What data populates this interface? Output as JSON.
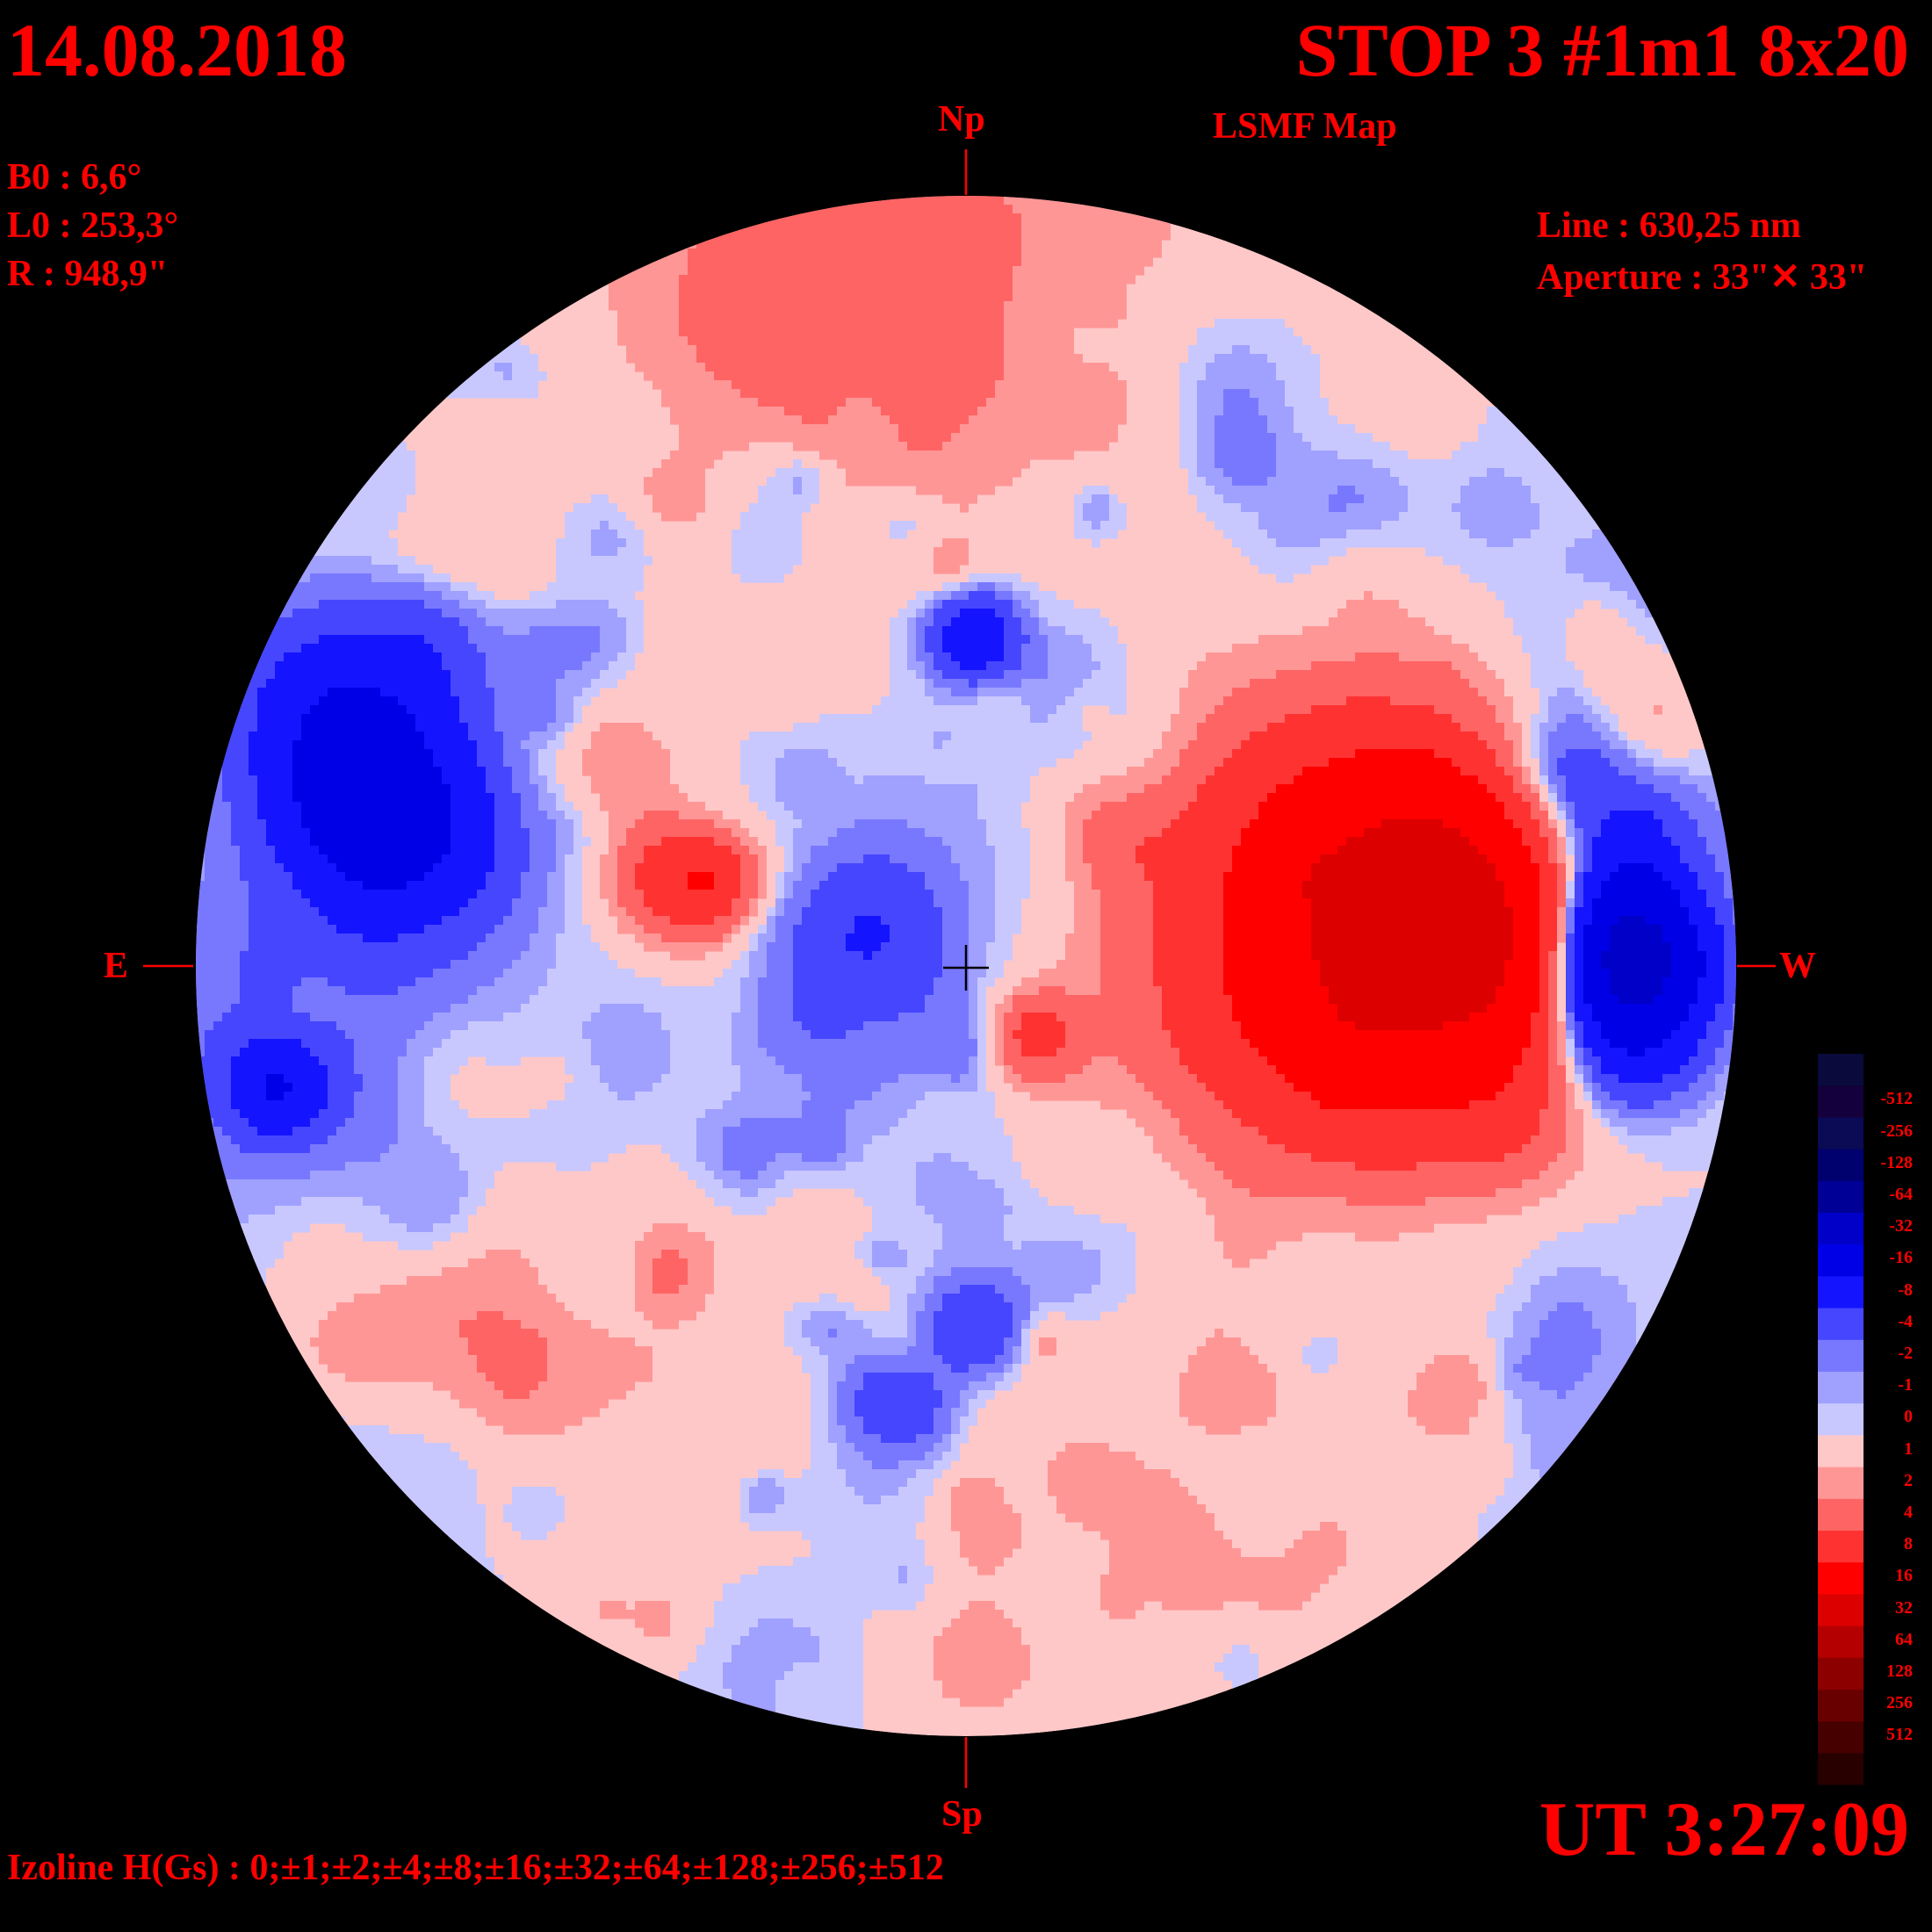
{
  "header": {
    "date": "14.08.2018",
    "stop_title": "STOP 3 #1m1 8x20",
    "map_type": "LSMF  Map"
  },
  "params": {
    "b0": "B0 : 6,6°",
    "l0": "L0 : 253,3°",
    "r": "R  : 948,9\"",
    "line": "Line :  630,25 nm",
    "aperture": "Aperture : 33\"✕ 33\""
  },
  "compass": {
    "north": "Np",
    "south": "Sp",
    "east": "E",
    "west": "W"
  },
  "footer": {
    "time": "UT 3:27:09",
    "izoline": "Izoline H(Gs) : 0;±1;±2;±4;±8;±16;±32;±64;±128;±256;±512"
  },
  "legend": {
    "levels": [
      {
        "label": "-512",
        "color": "#14003c"
      },
      {
        "label": "-256",
        "color": "#0a0a55"
      },
      {
        "label": "-128",
        "color": "#00006e"
      },
      {
        "label": "-64",
        "color": "#000096"
      },
      {
        "label": "-32",
        "color": "#0000c8"
      },
      {
        "label": "-16",
        "color": "#0000e6"
      },
      {
        "label": "-8",
        "color": "#1414ff"
      },
      {
        "label": "-4",
        "color": "#4646ff"
      },
      {
        "label": "-2",
        "color": "#7878ff"
      },
      {
        "label": "-1",
        "color": "#a0a0ff"
      },
      {
        "label": "0",
        "color": "#c8c8ff"
      },
      {
        "label": "1",
        "color": "#ffc8c8"
      },
      {
        "label": "2",
        "color": "#ff9696"
      },
      {
        "label": "4",
        "color": "#ff6464"
      },
      {
        "label": "8",
        "color": "#ff3232"
      },
      {
        "label": "16",
        "color": "#ff0000"
      },
      {
        "label": "32",
        "color": "#dc0000"
      },
      {
        "label": "64",
        "color": "#b40000"
      },
      {
        "label": "128",
        "color": "#8c0000"
      },
      {
        "label": "256",
        "color": "#690000"
      },
      {
        "label": "512",
        "color": "#460000"
      }
    ],
    "extra_dark_bottom": "#280000",
    "extra_dark_top": "#0a0a3c"
  }
}
